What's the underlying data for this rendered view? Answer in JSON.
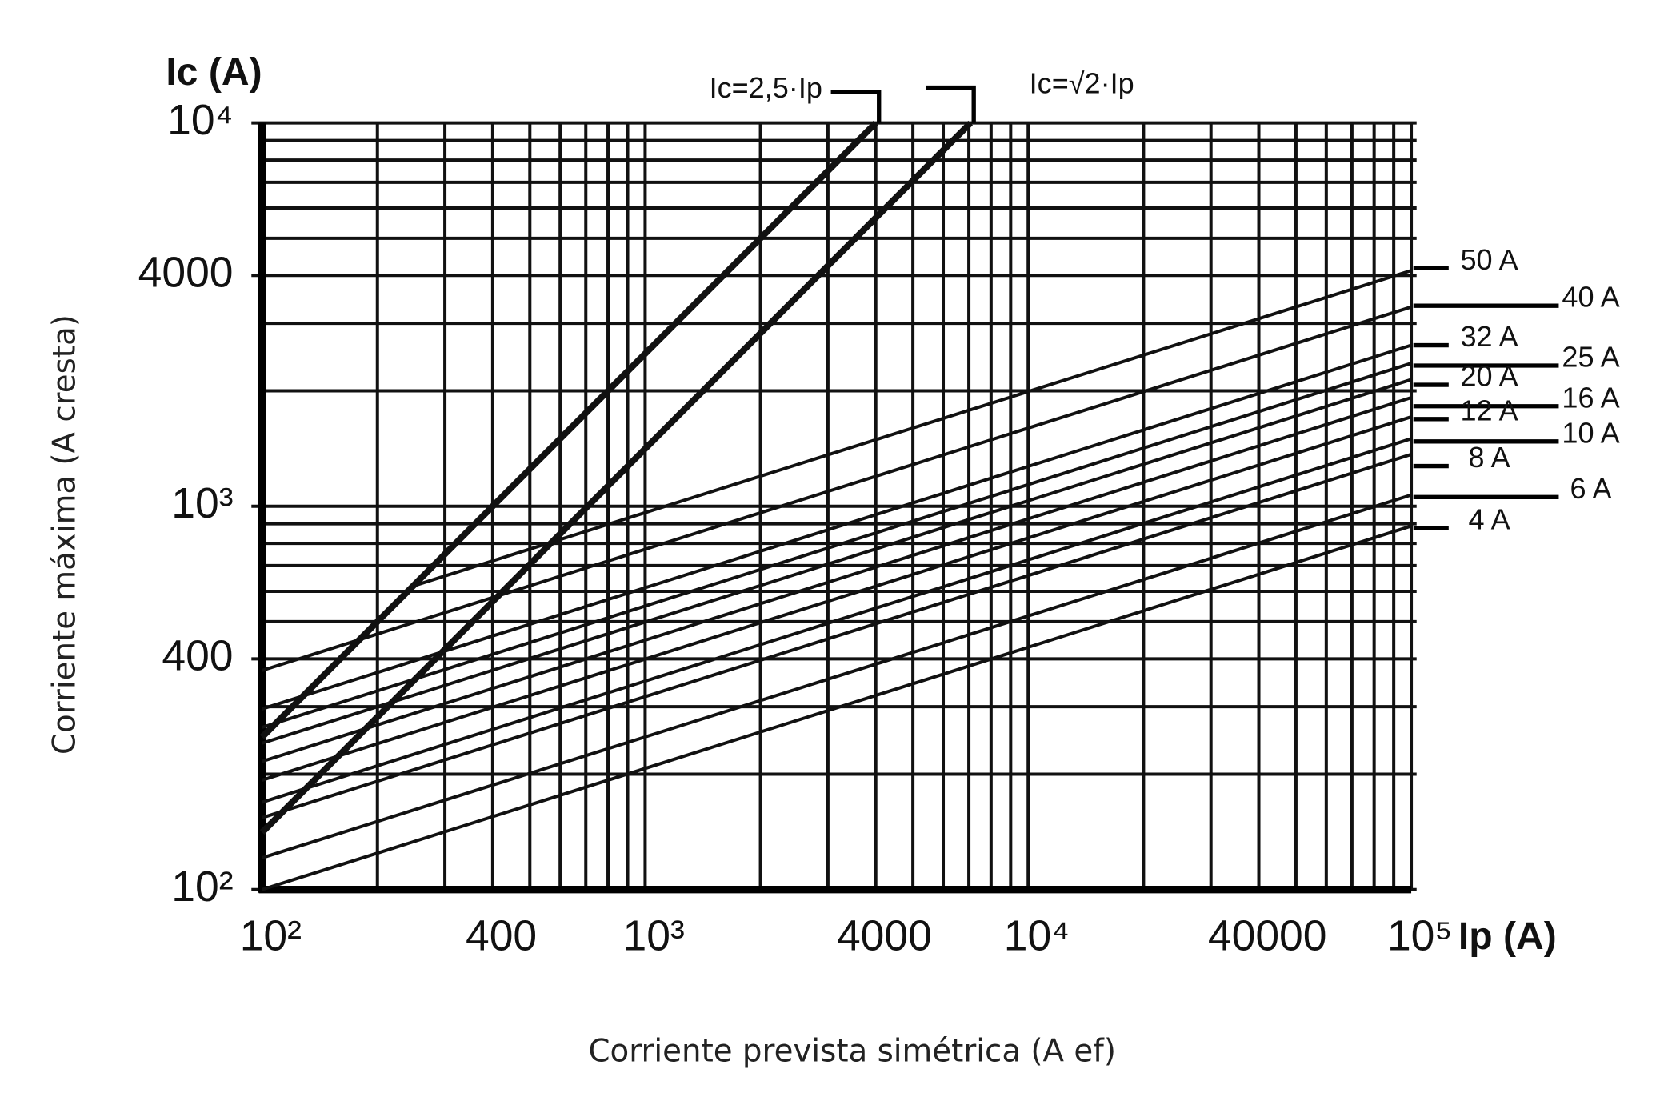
{
  "chart_data": {
    "type": "line",
    "x_label": "Ip (A)",
    "y_label": "Ic (A)",
    "x_title": "Corriente prevista simétrica (A ef)",
    "y_title": "Corriente máxima (A cresta)",
    "xscale": "log",
    "yscale": "log",
    "xlim": [
      100,
      100000
    ],
    "ylim": [
      100,
      10000
    ],
    "xticks": [
      {
        "value": 100,
        "label": "10²"
      },
      400,
      {
        "value": 1000,
        "label": "10³"
      },
      4000,
      {
        "value": 10000,
        "label": "10⁴"
      },
      40000,
      {
        "value": 100000,
        "label": "10⁵"
      }
    ],
    "yticks": [
      {
        "value": 100,
        "label": "10²"
      },
      400,
      {
        "value": 1000,
        "label": "10³"
      },
      4000,
      {
        "value": 10000,
        "label": "10⁴"
      }
    ],
    "xminorticks": [
      200,
      300,
      500,
      600,
      700,
      800,
      900,
      2000,
      3000,
      5000,
      6000,
      7000,
      8000,
      9000,
      20000,
      30000,
      50000,
      60000,
      70000,
      80000,
      90000
    ],
    "yminorticks": [
      200,
      300,
      500,
      600,
      700,
      800,
      900,
      2000,
      3000,
      5000,
      6000,
      7000,
      8000,
      9000
    ],
    "grid": true,
    "series": [
      {
        "name": "Ic=2,5·Ip",
        "color": "#111111",
        "emphasis": true,
        "x": [
          100,
          4000
        ],
        "values": [
          250,
          10000
        ]
      },
      {
        "name": "Ic=√2·Ip",
        "color": "#111111",
        "emphasis": true,
        "x": [
          100,
          7071
        ],
        "values": [
          141,
          10000
        ]
      },
      {
        "name": "50 A",
        "color": "#111111",
        "x": [
          250,
          100000
        ],
        "values": [
          621,
          4120
        ]
      },
      {
        "name": "40 A",
        "color": "#111111",
        "x": [
          100,
          100000
        ],
        "values": [
          373,
          3310
        ]
      },
      {
        "name": "32 A",
        "color": "#111111",
        "x": [
          100,
          100000
        ],
        "values": [
          296,
          2630
        ]
      },
      {
        "name": "25 A",
        "color": "#111111",
        "x": [
          100,
          100000
        ],
        "values": [
          265,
          2360
        ]
      },
      {
        "name": "20 A",
        "color": "#111111",
        "x": [
          100,
          100000
        ],
        "values": [
          241,
          2140
        ]
      },
      {
        "name": "16 A",
        "color": "#111111",
        "x": [
          100,
          100000
        ],
        "values": [
          216,
          1920
        ]
      },
      {
        "name": "12 A",
        "color": "#111111",
        "x": [
          100,
          100000
        ],
        "values": [
          193,
          1710
        ]
      },
      {
        "name": "10 A",
        "color": "#111111",
        "x": [
          100,
          100000
        ],
        "values": [
          169,
          1500
        ]
      },
      {
        "name": "8 A",
        "color": "#111111",
        "x": [
          100,
          100000
        ],
        "values": [
          154,
          1365
        ]
      },
      {
        "name": "6 A",
        "color": "#111111",
        "x": [
          100,
          100000
        ],
        "values": [
          121,
          1070
        ]
      },
      {
        "name": "4 A",
        "color": "#111111",
        "x": [
          100,
          100000
        ],
        "values": [
          100,
          888
        ]
      }
    ]
  }
}
